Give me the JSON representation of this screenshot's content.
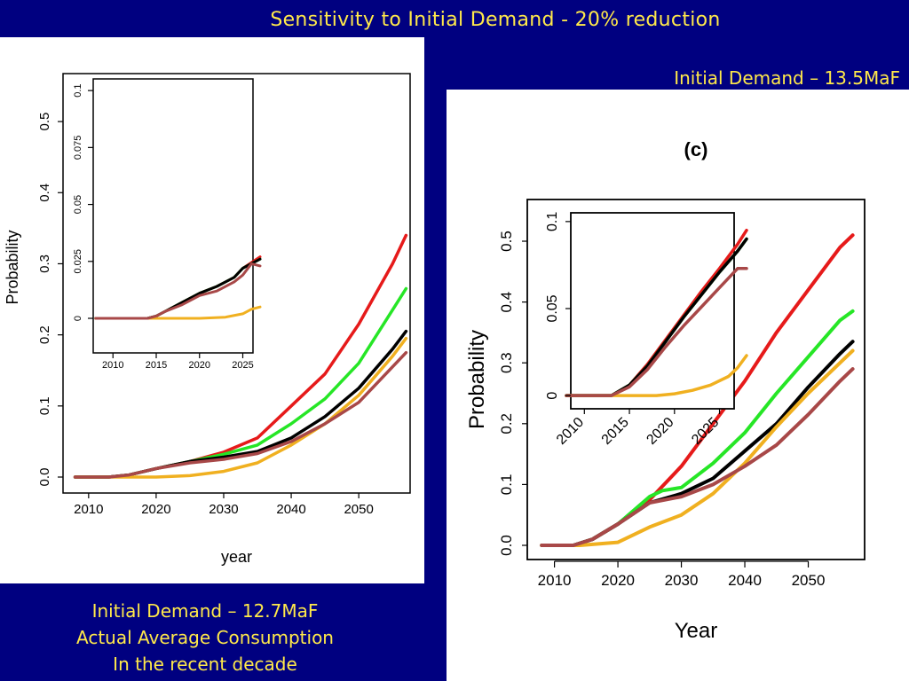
{
  "slide": {
    "title": "Sensitivity to Initial Demand - 20% reduction",
    "caption_right": "Initial Demand – 13.5MaF",
    "caption_left": [
      "Initial Demand – 12.7MaF",
      "Actual Average Consumption",
      "In the recent decade"
    ]
  },
  "colors": {
    "background": "#000080",
    "caption": "#ffe94a",
    "series": [
      "#e61a1a",
      "#26e626",
      "#000000",
      "#f0b020",
      "#a84848"
    ]
  },
  "chart_data": [
    {
      "id": "left-main",
      "type": "line",
      "title": "",
      "xlabel": "year",
      "ylabel": "Probability",
      "xlim": [
        2007,
        2058
      ],
      "ylim": [
        0.0,
        0.55
      ],
      "xticks": [
        2010,
        2020,
        2030,
        2040,
        2050
      ],
      "xtick_labels": [
        "2010",
        "2020",
        "2030",
        "2040",
        "2050"
      ],
      "yticks": [
        0.0,
        0.1,
        0.2,
        0.3,
        0.4,
        0.5
      ],
      "ytick_labels": [
        "0.0",
        "0.1",
        "0.2",
        "0.3",
        "0.4",
        "0.5"
      ],
      "grid": false,
      "series": [
        {
          "x": [
            2008,
            2013,
            2016,
            2020,
            2025,
            2030,
            2035,
            2040,
            2045,
            2050,
            2055,
            2057
          ],
          "values": [
            0,
            0,
            0.003,
            0.012,
            0.022,
            0.035,
            0.055,
            0.1,
            0.145,
            0.215,
            0.3,
            0.34
          ]
        },
        {
          "x": [
            2008,
            2013,
            2016,
            2020,
            2025,
            2030,
            2035,
            2040,
            2045,
            2050,
            2055,
            2057
          ],
          "values": [
            0,
            0,
            0.003,
            0.012,
            0.022,
            0.032,
            0.045,
            0.075,
            0.11,
            0.16,
            0.235,
            0.265
          ]
        },
        {
          "x": [
            2008,
            2013,
            2016,
            2020,
            2025,
            2030,
            2035,
            2040,
            2045,
            2050,
            2055,
            2057
          ],
          "values": [
            0,
            0,
            0.003,
            0.012,
            0.022,
            0.028,
            0.036,
            0.055,
            0.085,
            0.125,
            0.18,
            0.205
          ]
        },
        {
          "x": [
            2008,
            2013,
            2016,
            2020,
            2025,
            2030,
            2035,
            2040,
            2045,
            2050,
            2055,
            2057
          ],
          "values": [
            0,
            0,
            0,
            0,
            0.002,
            0.008,
            0.02,
            0.045,
            0.075,
            0.115,
            0.17,
            0.195
          ]
        },
        {
          "x": [
            2008,
            2013,
            2016,
            2020,
            2025,
            2030,
            2035,
            2040,
            2045,
            2050,
            2055,
            2057
          ],
          "values": [
            0,
            0,
            0.003,
            0.012,
            0.02,
            0.025,
            0.033,
            0.05,
            0.075,
            0.105,
            0.155,
            0.175
          ]
        }
      ]
    },
    {
      "id": "left-inset",
      "type": "line",
      "title": "",
      "xlabel": "",
      "ylabel": "",
      "xlim": [
        2007,
        2027
      ],
      "ylim": [
        0,
        0.102
      ],
      "xticks": [
        2010,
        2015,
        2020,
        2025
      ],
      "xtick_labels": [
        "2010",
        "2015",
        "2020",
        "2025"
      ],
      "yticks": [
        0,
        0.025,
        0.05,
        0.075,
        0.1
      ],
      "ytick_labels": [
        "0",
        "0.025",
        "0.05",
        "0.075",
        "0.1"
      ],
      "grid": false,
      "series": [
        {
          "x": [
            2008,
            2014,
            2015,
            2016,
            2018,
            2020,
            2022,
            2024,
            2025,
            2027
          ],
          "values": [
            0,
            0,
            0.001,
            0.003,
            0.007,
            0.011,
            0.014,
            0.018,
            0.022,
            0.027
          ]
        },
        {
          "x": [
            2008,
            2014,
            2015,
            2016,
            2018,
            2020,
            2022,
            2024,
            2025,
            2027
          ],
          "values": [
            0,
            0,
            0.001,
            0.003,
            0.007,
            0.011,
            0.014,
            0.018,
            0.022,
            0.026
          ]
        },
        {
          "x": [
            2008,
            2014,
            2015,
            2016,
            2018,
            2020,
            2022,
            2024,
            2025,
            2027
          ],
          "values": [
            0,
            0,
            0.001,
            0.003,
            0.007,
            0.011,
            0.014,
            0.018,
            0.022,
            0.026
          ]
        },
        {
          "x": [
            2008,
            2016,
            2020,
            2023,
            2025,
            2026,
            2027
          ],
          "values": [
            0,
            0,
            0,
            0.0005,
            0.002,
            0.004,
            0.005
          ]
        },
        {
          "x": [
            2008,
            2014,
            2015,
            2016,
            2018,
            2020,
            2022,
            2024,
            2025,
            2026,
            2027
          ],
          "values": [
            0,
            0,
            0.001,
            0.003,
            0.006,
            0.01,
            0.012,
            0.016,
            0.019,
            0.024,
            0.023
          ]
        }
      ]
    },
    {
      "id": "right-main",
      "type": "line",
      "title": "(c)",
      "xlabel": "Year",
      "ylabel": "Probability",
      "xlim": [
        2006,
        2060
      ],
      "ylim": [
        0.0,
        0.57
      ],
      "xticks": [
        2010,
        2020,
        2030,
        2040,
        2050
      ],
      "xtick_labels": [
        "2010",
        "2020",
        "2030",
        "2040",
        "2050"
      ],
      "yticks": [
        0.0,
        0.1,
        0.2,
        0.3,
        0.4,
        0.5
      ],
      "ytick_labels": [
        "0.0",
        "0.1",
        "0.2",
        "0.3",
        "0.4",
        "0.5"
      ],
      "grid": false,
      "series": [
        {
          "x": [
            2008,
            2013,
            2016,
            2020,
            2025,
            2030,
            2035,
            2040,
            2045,
            2050,
            2055,
            2057
          ],
          "values": [
            0,
            0,
            0.01,
            0.035,
            0.075,
            0.13,
            0.2,
            0.27,
            0.35,
            0.42,
            0.49,
            0.51
          ]
        },
        {
          "x": [
            2008,
            2013,
            2016,
            2020,
            2025,
            2027,
            2030,
            2035,
            2040,
            2045,
            2050,
            2055,
            2057
          ],
          "values": [
            0,
            0,
            0.01,
            0.035,
            0.08,
            0.09,
            0.095,
            0.135,
            0.185,
            0.25,
            0.31,
            0.37,
            0.385
          ]
        },
        {
          "x": [
            2008,
            2013,
            2016,
            2020,
            2025,
            2030,
            2035,
            2040,
            2045,
            2050,
            2055,
            2057
          ],
          "values": [
            0,
            0,
            0.01,
            0.035,
            0.07,
            0.085,
            0.11,
            0.155,
            0.2,
            0.26,
            0.315,
            0.335
          ]
        },
        {
          "x": [
            2008,
            2014,
            2020,
            2025,
            2030,
            2035,
            2040,
            2045,
            2050,
            2055,
            2057
          ],
          "values": [
            0,
            0,
            0.005,
            0.03,
            0.05,
            0.085,
            0.135,
            0.195,
            0.25,
            0.3,
            0.32
          ]
        },
        {
          "x": [
            2008,
            2013,
            2016,
            2020,
            2025,
            2030,
            2035,
            2040,
            2045,
            2050,
            2055,
            2057
          ],
          "values": [
            0,
            0,
            0.01,
            0.035,
            0.07,
            0.08,
            0.1,
            0.13,
            0.165,
            0.215,
            0.27,
            0.29
          ]
        }
      ]
    },
    {
      "id": "right-inset",
      "type": "line",
      "title": "",
      "xlabel": "",
      "ylabel": "",
      "xlim": [
        2008,
        2028
      ],
      "ylim": [
        -0.003,
        0.104
      ],
      "xticks": [
        2010,
        2015,
        2020,
        2025
      ],
      "xtick_labels": [
        "2010",
        "2015",
        "2020",
        "2025"
      ],
      "yticks": [
        0,
        0.05,
        0.1
      ],
      "ytick_labels": [
        "0",
        "0.05",
        "0.1"
      ],
      "grid": false,
      "series": [
        {
          "x": [
            2008,
            2013,
            2015,
            2017,
            2019,
            2021,
            2023,
            2025,
            2027,
            2028
          ],
          "values": [
            0,
            0,
            0.006,
            0.018,
            0.032,
            0.046,
            0.06,
            0.073,
            0.087,
            0.095
          ]
        },
        {
          "x": [
            2008,
            2013,
            2015,
            2017,
            2019,
            2021,
            2023,
            2025,
            2027,
            2028
          ],
          "values": [
            0,
            0,
            0.006,
            0.017,
            0.031,
            0.045,
            0.058,
            0.071,
            0.083,
            0.09
          ]
        },
        {
          "x": [
            2008,
            2013,
            2015,
            2017,
            2019,
            2021,
            2023,
            2025,
            2027,
            2028
          ],
          "values": [
            0,
            0,
            0.006,
            0.017,
            0.031,
            0.045,
            0.058,
            0.071,
            0.083,
            0.09
          ]
        },
        {
          "x": [
            2008,
            2018,
            2020,
            2022,
            2024,
            2026,
            2027,
            2028
          ],
          "values": [
            0,
            0,
            0.001,
            0.003,
            0.006,
            0.011,
            0.016,
            0.023
          ]
        },
        {
          "x": [
            2008,
            2013,
            2015,
            2017,
            2019,
            2021,
            2023,
            2025,
            2027,
            2028
          ],
          "values": [
            0,
            0,
            0.005,
            0.015,
            0.028,
            0.04,
            0.051,
            0.062,
            0.073,
            0.073
          ]
        }
      ]
    }
  ]
}
